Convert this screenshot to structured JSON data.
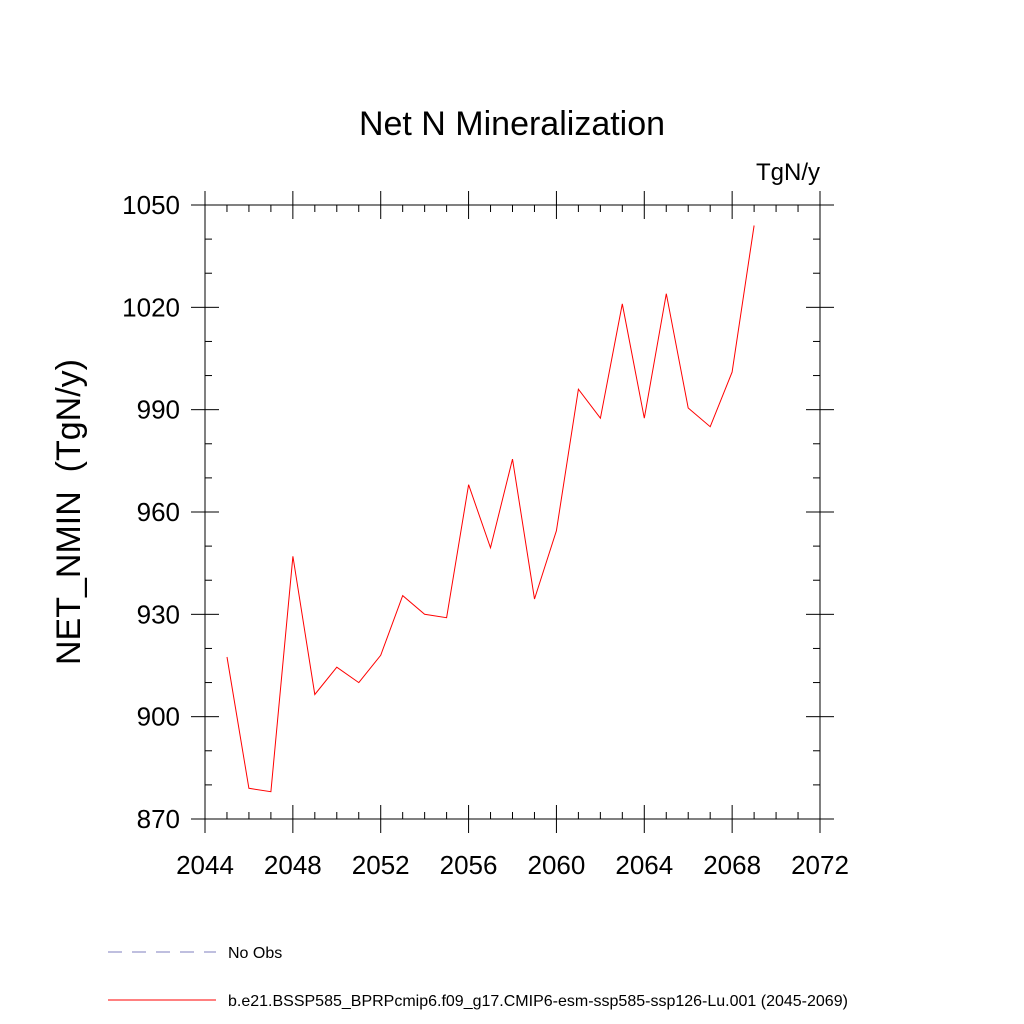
{
  "chart_data": {
    "type": "line",
    "title": "Net N Mineralization",
    "units_label": "TgN/y",
    "ylabel": "NET_NMIN  (TgN/y)",
    "xlabel": "",
    "xlim": [
      2044,
      2072
    ],
    "ylim": [
      870,
      1050
    ],
    "xticks": [
      2044,
      2048,
      2052,
      2056,
      2060,
      2064,
      2068,
      2072
    ],
    "yticks": [
      870,
      900,
      930,
      960,
      990,
      1020,
      1050
    ],
    "grid": false,
    "legend_position": "bottom-left",
    "series": [
      {
        "name": "b.e21.BSSP585_BPRPcmip6.f09_g17.CMIP6-esm-ssp585-ssp126-Lu.001 (2045-2069)",
        "color": "#ff0000",
        "line_style": "solid",
        "x": [
          2045,
          2046,
          2047,
          2048,
          2049,
          2050,
          2051,
          2052,
          2053,
          2054,
          2055,
          2056,
          2057,
          2058,
          2059,
          2060,
          2061,
          2062,
          2063,
          2064,
          2065,
          2066,
          2067,
          2068,
          2069
        ],
        "y": [
          917.5,
          879,
          878,
          947,
          906.5,
          914.5,
          910,
          918,
          935.5,
          930,
          929,
          968,
          949.5,
          975.5,
          934.5,
          954.5,
          996,
          987.5,
          1021,
          987.5,
          1024,
          990.5,
          985,
          1001,
          1044
        ]
      },
      {
        "name": "No Obs",
        "color": "#7f7fbf",
        "line_style": "dashed",
        "x": [],
        "y": []
      }
    ]
  }
}
